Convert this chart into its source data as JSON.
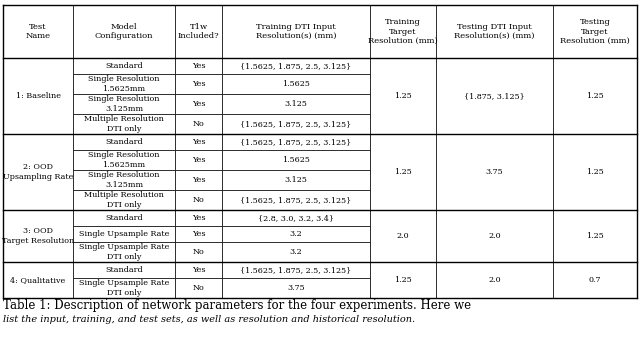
{
  "col_headers": [
    "Test\nName",
    "Model\nConfiguration",
    "T1w\nIncluded?",
    "Training DTI Input\nResolution(s) (mm)",
    "Training\nTarget\nResolution (mm)",
    "Testing DTI Input\nResolution(s) (mm)",
    "Testing\nTarget\nResolution (mm)"
  ],
  "caption_line1": "Table 1: Description of network parameters for the four experiments. Here we",
  "caption_line2": "list the input, training, and test sets, as well as resolution and historical resolution.",
  "bg_color": "#ffffff",
  "line_color": "#000000",
  "font_size": 5.8,
  "header_font_size": 6.0
}
